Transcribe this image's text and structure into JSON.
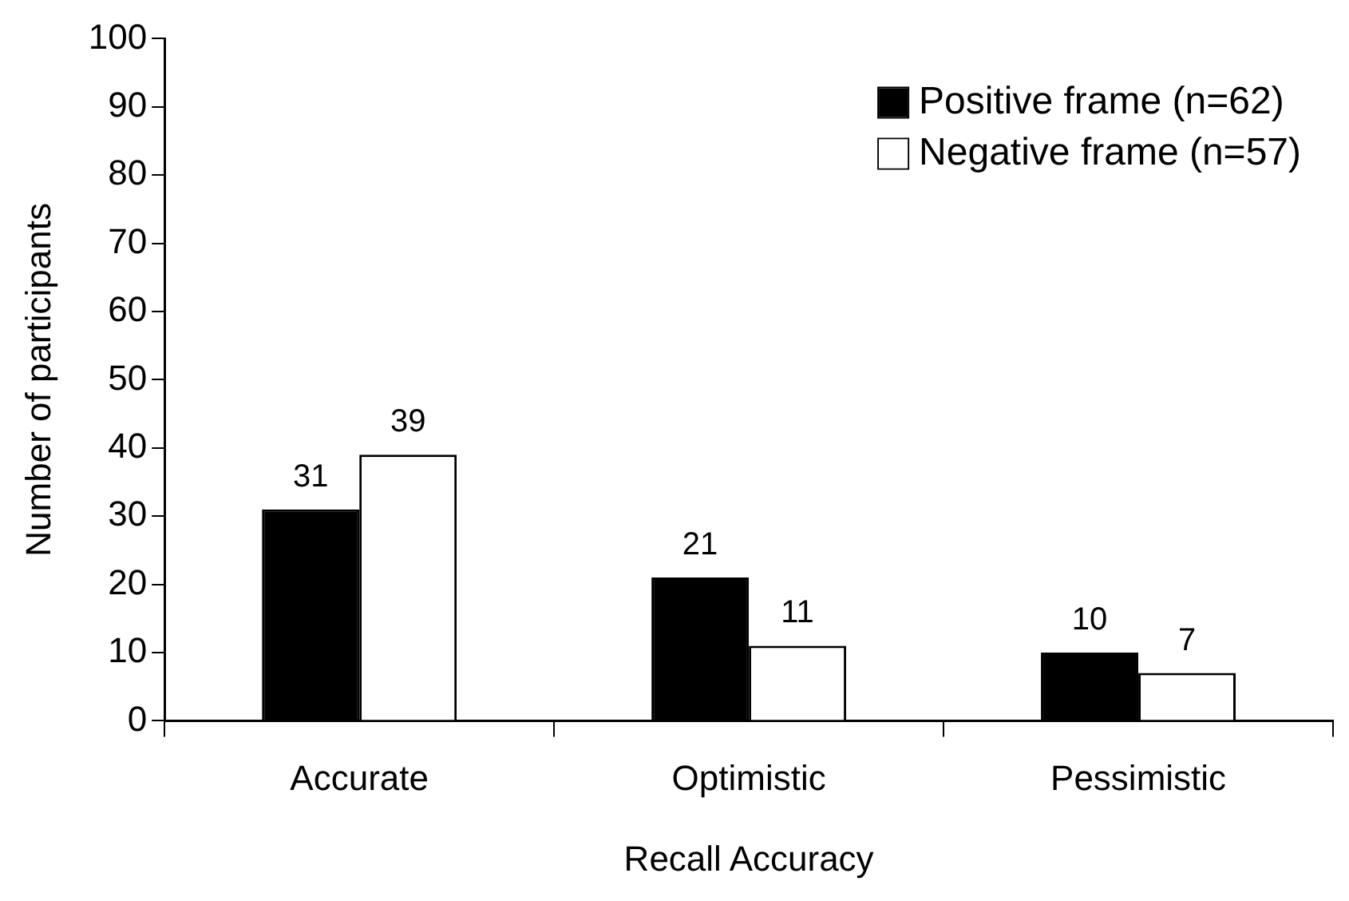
{
  "chart_data": {
    "type": "bar",
    "xlabel": "Recall Accuracy",
    "ylabel": "Number of participants",
    "categories": [
      "Accurate",
      "Optimistic",
      "Pessimistic"
    ],
    "series": [
      {
        "name": "Positive frame (n=62)",
        "color": "#000000",
        "values": [
          31,
          21,
          10
        ]
      },
      {
        "name": "Negative frame (n=57)",
        "color": "#ffffff",
        "values": [
          39,
          11,
          7
        ]
      }
    ],
    "ylim": [
      0,
      100
    ],
    "yticks": [
      0,
      10,
      20,
      30,
      40,
      50,
      60,
      70,
      80,
      90,
      100
    ],
    "grid": false,
    "legend": "top right",
    "data_labels": true
  }
}
